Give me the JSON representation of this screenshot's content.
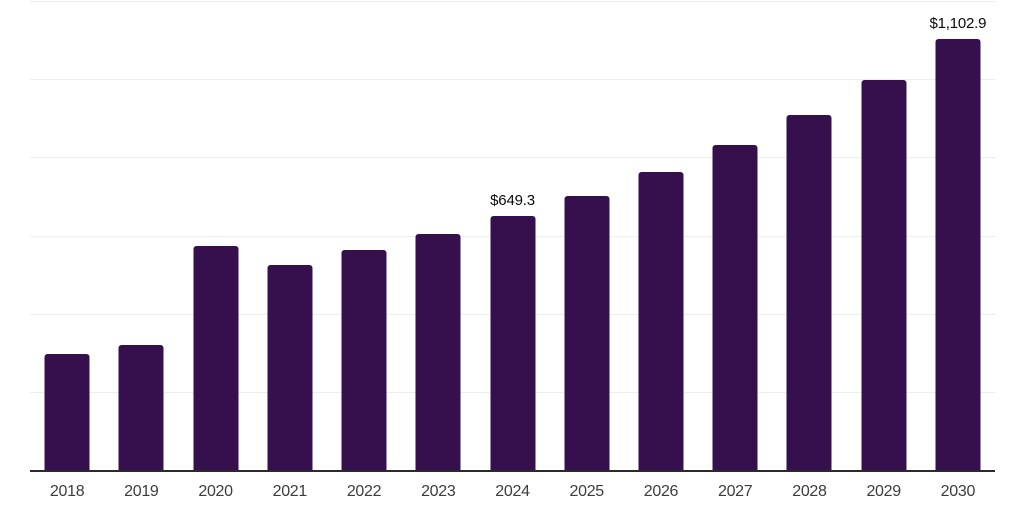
{
  "chart_data": {
    "type": "bar",
    "title": "",
    "xlabel": "",
    "ylabel": "",
    "categories": [
      "2018",
      "2019",
      "2020",
      "2021",
      "2022",
      "2023",
      "2024",
      "2025",
      "2026",
      "2027",
      "2028",
      "2029",
      "2030"
    ],
    "values": [
      298,
      320,
      573,
      525,
      563,
      603,
      649.3,
      701,
      763,
      832,
      908,
      998,
      1102.9
    ],
    "bar_labels": [
      "",
      "",
      "",
      "",
      "",
      "",
      "$649.3",
      "",
      "",
      "",
      "",
      "",
      "$1,102.9"
    ],
    "ylim": [
      0,
      1200
    ],
    "gridline_step": 200,
    "grid": "horizontal-only",
    "y_axis_labels_visible": false,
    "legend_position": "none",
    "colors": {
      "bar": "#36104d",
      "gridline": "#ededed",
      "axis_line": "#2a2a2a",
      "tick_label": "#3c3c3c",
      "value_label": "#0a0a0a",
      "background": "#ffffff"
    }
  }
}
